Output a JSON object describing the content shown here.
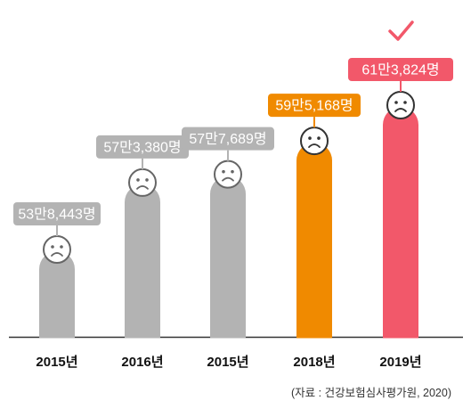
{
  "chart_data": {
    "type": "bar",
    "categories": [
      "2015년",
      "2016년",
      "2015년",
      "2018년",
      "2019년"
    ],
    "values": [
      538443,
      573380,
      577689,
      595168,
      613824
    ],
    "data_labels": [
      "53만8,443명",
      "57만3,380명",
      "57만7,689명",
      "59만5,168명",
      "61만3,824명"
    ],
    "title": "",
    "xlabel": "",
    "ylabel": "",
    "grid": false,
    "legend": "none",
    "highlight_index": 4,
    "colors": [
      "#b3b3b3",
      "#b3b3b3",
      "#b3b3b3",
      "#f08a00",
      "#f2586a"
    ],
    "icons": [
      "sad-face-icon",
      "sad-face-icon",
      "sad-face-icon",
      "sad-face-icon",
      "sad-face-icon",
      "check-mark-icon"
    ]
  },
  "source": "(자료 : 건강보험심사평가원, 2020)"
}
